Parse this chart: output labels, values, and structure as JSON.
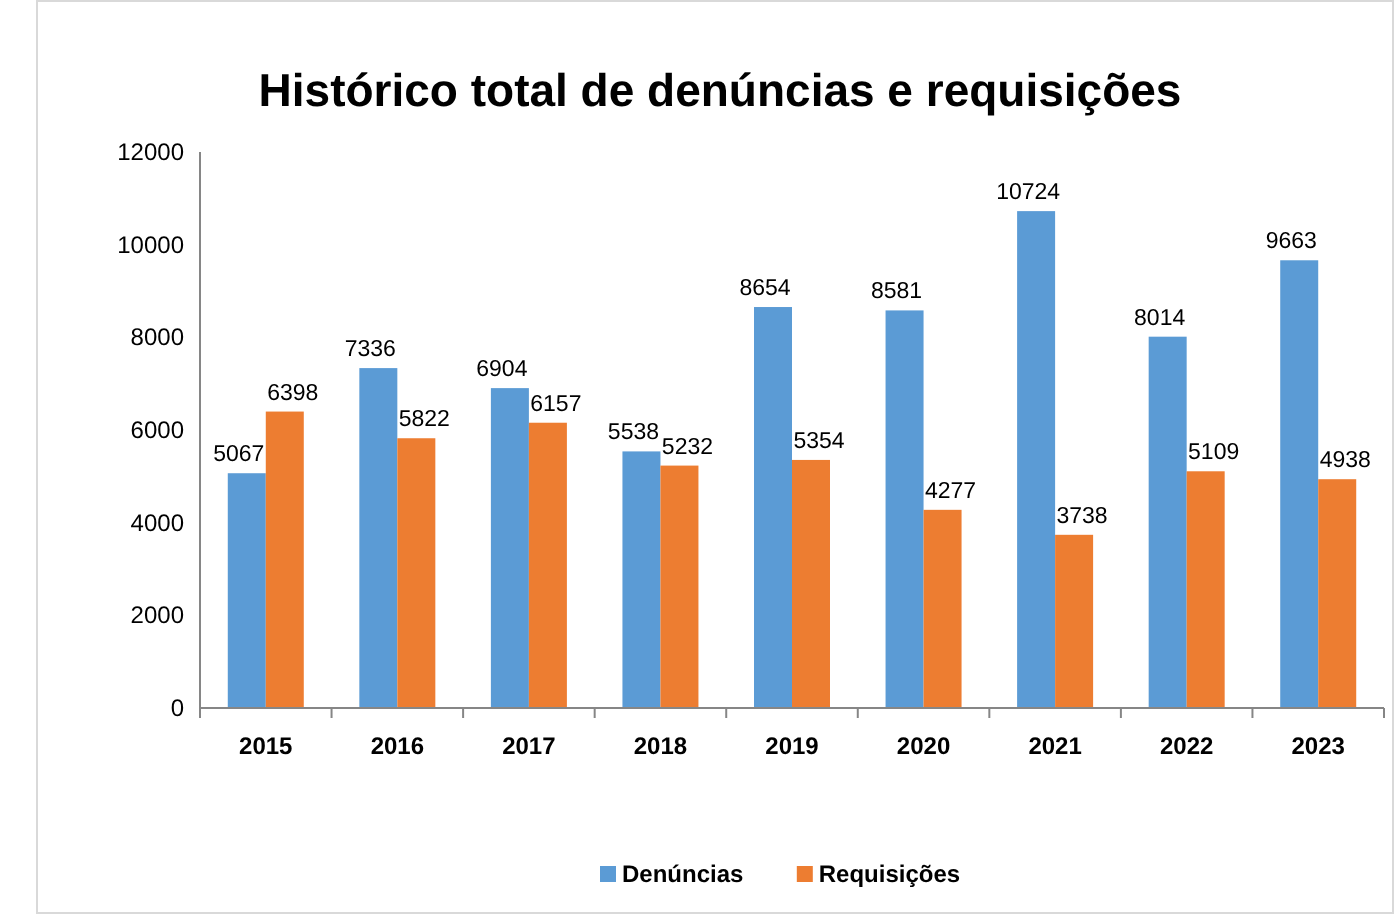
{
  "chart_data": {
    "type": "bar",
    "title": "Histórico total de denúncias e requisições",
    "categories": [
      "2015",
      "2016",
      "2017",
      "2018",
      "2019",
      "2020",
      "2021",
      "2022",
      "2023"
    ],
    "series": [
      {
        "name": "Denúncias",
        "color": "#5b9bd5",
        "values": [
          5067,
          7336,
          6904,
          5538,
          8654,
          8581,
          10724,
          8014,
          9663
        ]
      },
      {
        "name": "Requisições",
        "color": "#ed7d31",
        "values": [
          6398,
          5822,
          6157,
          5232,
          5354,
          4277,
          3738,
          5109,
          4938
        ]
      }
    ],
    "ylim": [
      0,
      12000
    ],
    "yticks": [
      0,
      2000,
      4000,
      6000,
      8000,
      10000,
      12000
    ],
    "data_labels": true,
    "grid": false,
    "legend": "bottom"
  }
}
